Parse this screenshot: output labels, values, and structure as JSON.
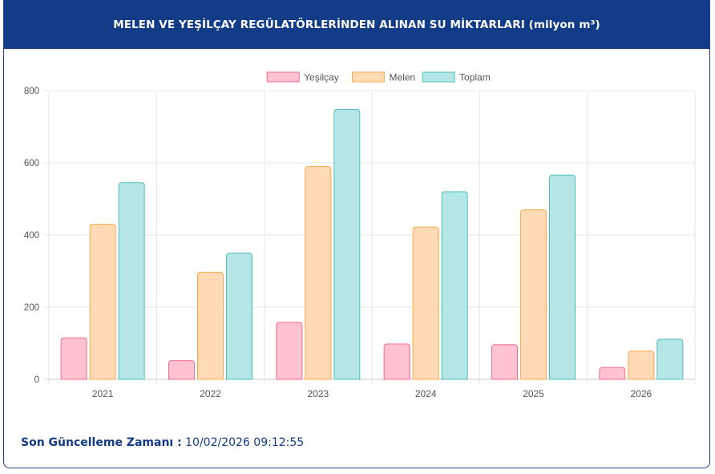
{
  "header": {
    "title": "MELEN VE YEŞİLÇAY REGÜLATÖRLERİNDEN ALINAN SU MİKTARLARI (milyon m³)"
  },
  "footer": {
    "label": "Son Güncelleme Zamanı :",
    "value": "10/02/2026 09:12:55"
  },
  "colors": {
    "header_bg": "#123c87",
    "yesilcay_fill": "#ffc2d1",
    "yesilcay_stroke": "#f26b93",
    "melen_fill": "#ffdab4",
    "melen_stroke": "#f7a94c",
    "toplam_fill": "#b5e6e6",
    "toplam_stroke": "#4fbcbc"
  },
  "chart_data": {
    "type": "bar",
    "title": "MELEN VE YEŞİLÇAY REGÜLATÖRLERİNDEN ALINAN SU MİKTARLARI (milyon m³)",
    "categories": [
      "2021",
      "2022",
      "2023",
      "2024",
      "2025",
      "2026"
    ],
    "series": [
      {
        "name": "Yeşilçay",
        "values": [
          115,
          52,
          158,
          98,
          96,
          33
        ]
      },
      {
        "name": "Melen",
        "values": [
          430,
          297,
          590,
          422,
          470,
          78
        ]
      },
      {
        "name": "Toplam",
        "values": [
          545,
          350,
          748,
          520,
          566,
          111
        ]
      }
    ],
    "ylim": [
      0,
      800
    ],
    "yticks": [
      "0",
      "200",
      "400",
      "600",
      "800"
    ],
    "grid": true,
    "legend": "top-center",
    "xlabel": "",
    "ylabel": ""
  }
}
